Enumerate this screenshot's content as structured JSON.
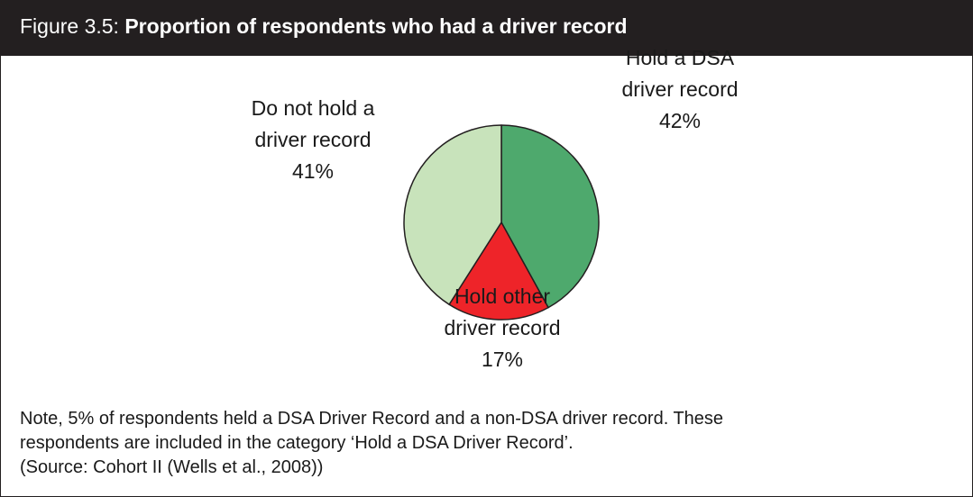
{
  "header": {
    "figure_number": "Figure 3.5:",
    "title": "Proportion of respondents who had a driver record"
  },
  "chart_data": {
    "type": "pie",
    "title": "Proportion of respondents who had a driver record",
    "slices": [
      {
        "label_line1": "Hold a DSA",
        "label_line2": "driver record",
        "value": 42,
        "pct": "42%",
        "color": "#4ea96d"
      },
      {
        "label_line1": "Hold other",
        "label_line2": "driver record",
        "value": 17,
        "pct": "17%",
        "color": "#ee2429"
      },
      {
        "label_line1": "Do not hold a",
        "label_line2": "driver record",
        "value": 41,
        "pct": "41%",
        "color": "#c8e3bb"
      }
    ]
  },
  "note": {
    "line1": "Note, 5% of respondents held a DSA Driver Record and a non-DSA driver record. These",
    "line2": "respondents are included in the category ‘Hold a DSA Driver Record’.",
    "line3": "(Source: Cohort II (Wells et al., 2008))"
  }
}
